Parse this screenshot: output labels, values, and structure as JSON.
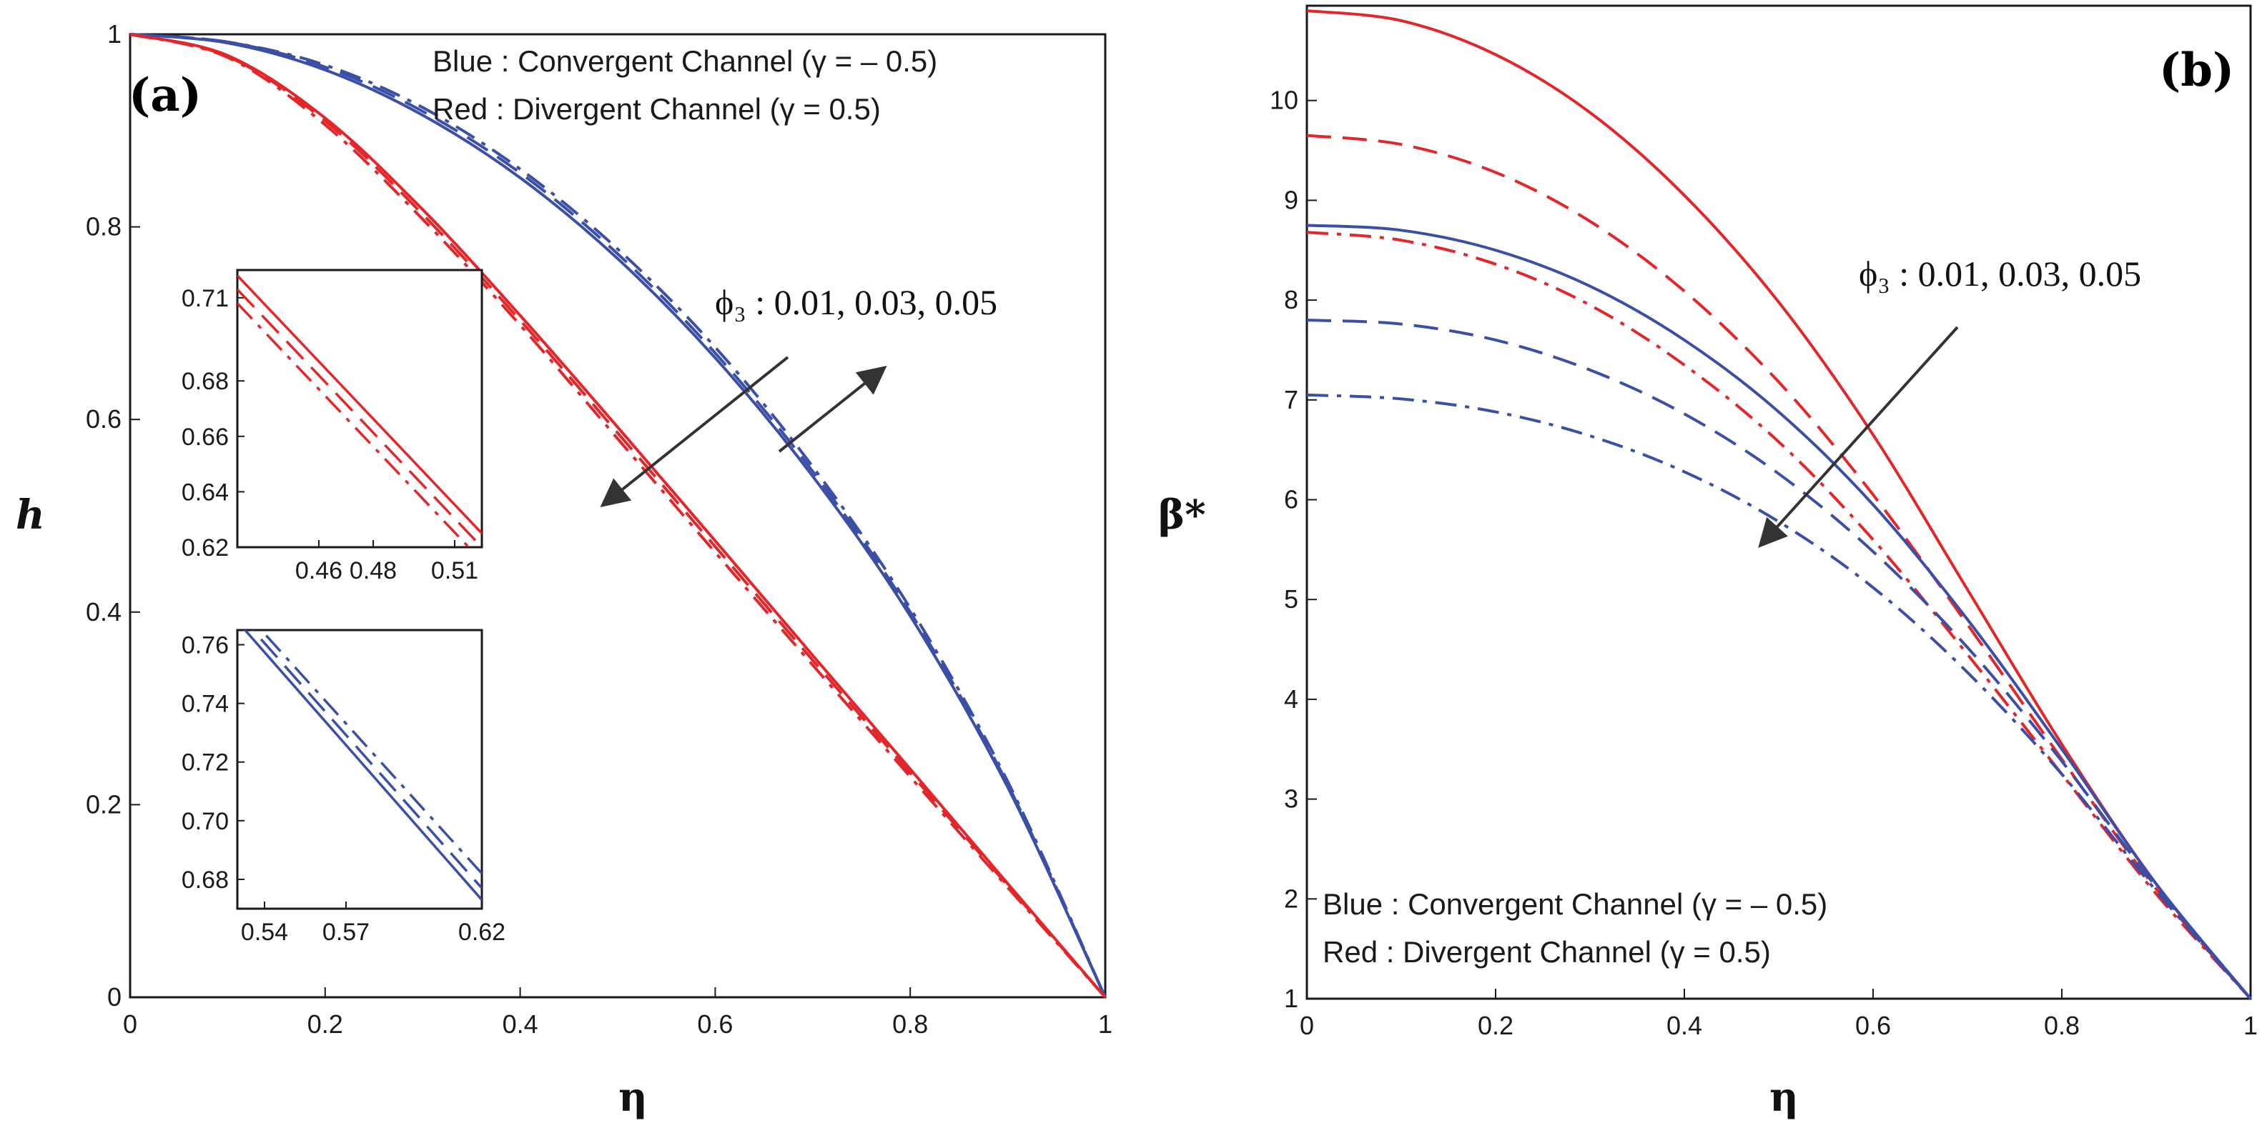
{
  "colors": {
    "blue": "#3b4fa6",
    "red": "#e3262a",
    "frame": "#1a1a1a",
    "arrow": "#333333"
  },
  "chart_data": [
    {
      "type": "line",
      "panel_label": "(a)",
      "xlabel": "η",
      "ylabel": "h",
      "xlim": [
        0,
        1
      ],
      "ylim": [
        0,
        1
      ],
      "x_ticks": [
        0,
        0.2,
        0.4,
        0.6,
        0.8,
        1
      ],
      "x_tick_labels": [
        "0",
        "0.2",
        "0.4",
        "0.6",
        "0.8",
        "1"
      ],
      "y_ticks": [
        0,
        0.2,
        0.4,
        0.6,
        0.8,
        1
      ],
      "y_tick_labels": [
        "0",
        "0.2",
        "0.4",
        "0.6",
        "0.8",
        "1"
      ],
      "legend": [
        "Blue : Convergent Channel (γ = – 0.5)",
        "Red : Divergent Channel (γ = 0.5)"
      ],
      "legend_position": "top-right",
      "annotation": "ϕ₃ : 0.01, 0.03, 0.05",
      "x": [
        0,
        0.1,
        0.2,
        0.3,
        0.4,
        0.5,
        0.6,
        0.7,
        0.8,
        0.9,
        1.0
      ],
      "series": [
        {
          "color": "blue",
          "dash": "solid",
          "values": [
            1.0,
            0.991,
            0.963,
            0.916,
            0.851,
            0.767,
            0.664,
            0.541,
            0.396,
            0.218,
            0.0
          ]
        },
        {
          "color": "blue",
          "dash": "dash",
          "values": [
            1.0,
            0.992,
            0.966,
            0.92,
            0.856,
            0.772,
            0.669,
            0.546,
            0.4,
            0.221,
            0.0
          ]
        },
        {
          "color": "blue",
          "dash": "dashdot",
          "values": [
            1.0,
            0.992,
            0.968,
            0.924,
            0.86,
            0.777,
            0.675,
            0.551,
            0.404,
            0.224,
            0.0
          ]
        },
        {
          "color": "red",
          "dash": "solid",
          "values": [
            1.0,
            0.978,
            0.913,
            0.818,
            0.708,
            0.592,
            0.474,
            0.355,
            0.237,
            0.118,
            0.0
          ]
        },
        {
          "color": "red",
          "dash": "dash",
          "values": [
            1.0,
            0.977,
            0.91,
            0.813,
            0.703,
            0.586,
            0.468,
            0.35,
            0.233,
            0.116,
            0.0
          ]
        },
        {
          "color": "red",
          "dash": "dashdot",
          "values": [
            1.0,
            0.976,
            0.906,
            0.808,
            0.698,
            0.58,
            0.462,
            0.345,
            0.229,
            0.114,
            0.0
          ]
        }
      ],
      "insets": [
        {
          "xlim": [
            0.43,
            0.52
          ],
          "ylim": [
            0.62,
            0.72
          ],
          "x_ticks": [
            0.46,
            0.48,
            0.51
          ],
          "x_tick_labels": [
            "0.46",
            "0.48",
            "0.51"
          ],
          "y_ticks": [
            0.62,
            0.64,
            0.66,
            0.68,
            0.71
          ],
          "y_tick_labels": [
            "0.62",
            "0.64",
            "0.66",
            "0.68",
            "0.71"
          ],
          "x": [
            0.43,
            0.52
          ],
          "series": [
            {
              "color": "red",
              "dash": "solid",
              "values": [
                0.718,
                0.625
              ]
            },
            {
              "color": "red",
              "dash": "dash",
              "values": [
                0.713,
                0.62
              ]
            },
            {
              "color": "red",
              "dash": "dashdot",
              "values": [
                0.708,
                0.615
              ]
            }
          ]
        },
        {
          "xlim": [
            0.53,
            0.62
          ],
          "ylim": [
            0.67,
            0.765
          ],
          "x_ticks": [
            0.54,
            0.57,
            0.62
          ],
          "x_tick_labels": [
            "0.54",
            "0.57",
            "0.62"
          ],
          "y_ticks": [
            0.68,
            0.7,
            0.72,
            0.74,
            0.76
          ],
          "y_tick_labels": [
            "0.68",
            "0.70",
            "0.72",
            "0.74",
            "0.76"
          ],
          "x": [
            0.53,
            0.62
          ],
          "series": [
            {
              "color": "blue",
              "dash": "solid",
              "values": [
                0.768,
                0.673
              ]
            },
            {
              "color": "blue",
              "dash": "dash",
              "values": [
                0.771,
                0.677
              ]
            },
            {
              "color": "blue",
              "dash": "dashdot",
              "values": [
                0.774,
                0.682
              ]
            }
          ]
        }
      ]
    },
    {
      "type": "line",
      "panel_label": "(b)",
      "xlabel": "η",
      "ylabel": "β*",
      "xlim": [
        0,
        1
      ],
      "ylim": [
        1,
        10.95
      ],
      "x_ticks": [
        0,
        0.2,
        0.4,
        0.6,
        0.8,
        1
      ],
      "x_tick_labels": [
        "0",
        "0.2",
        "0.4",
        "0.6",
        "0.8",
        "1"
      ],
      "y_ticks": [
        1,
        2,
        3,
        4,
        5,
        6,
        7,
        8,
        9,
        10
      ],
      "y_tick_labels": [
        "1",
        "2",
        "3",
        "4",
        "5",
        "6",
        "7",
        "8",
        "9",
        "10"
      ],
      "legend": [
        "Blue : Convergent Channel (γ = – 0.5)",
        "Red : Divergent Channel (γ = 0.5)"
      ],
      "legend_position": "bottom-left",
      "annotation": "ϕ₃ : 0.01, 0.03, 0.05",
      "x": [
        0,
        0.1,
        0.2,
        0.3,
        0.4,
        0.5,
        0.6,
        0.7,
        0.8,
        0.9,
        1.0
      ],
      "series": [
        {
          "color": "red",
          "dash": "solid",
          "values": [
            10.9,
            10.8,
            10.46,
            9.88,
            9.05,
            7.98,
            6.65,
            5.1,
            3.55,
            2.15,
            1.0
          ]
        },
        {
          "color": "red",
          "dash": "dash",
          "values": [
            9.65,
            9.56,
            9.28,
            8.79,
            8.09,
            7.18,
            6.05,
            4.75,
            3.4,
            2.1,
            1.0
          ]
        },
        {
          "color": "red",
          "dash": "dashdot",
          "values": [
            8.68,
            8.6,
            8.36,
            7.95,
            7.35,
            6.58,
            5.6,
            4.45,
            3.25,
            2.05,
            1.0
          ]
        },
        {
          "color": "blue",
          "dash": "solid",
          "values": [
            8.75,
            8.7,
            8.5,
            8.14,
            7.6,
            6.88,
            5.95,
            4.8,
            3.5,
            2.15,
            1.0
          ]
        },
        {
          "color": "blue",
          "dash": "dash",
          "values": [
            7.8,
            7.76,
            7.6,
            7.3,
            6.86,
            6.26,
            5.48,
            4.52,
            3.38,
            2.12,
            1.0
          ]
        },
        {
          "color": "blue",
          "dash": "dashdot",
          "values": [
            7.05,
            7.01,
            6.88,
            6.64,
            6.28,
            5.78,
            5.12,
            4.27,
            3.25,
            2.08,
            1.0
          ]
        }
      ]
    }
  ]
}
